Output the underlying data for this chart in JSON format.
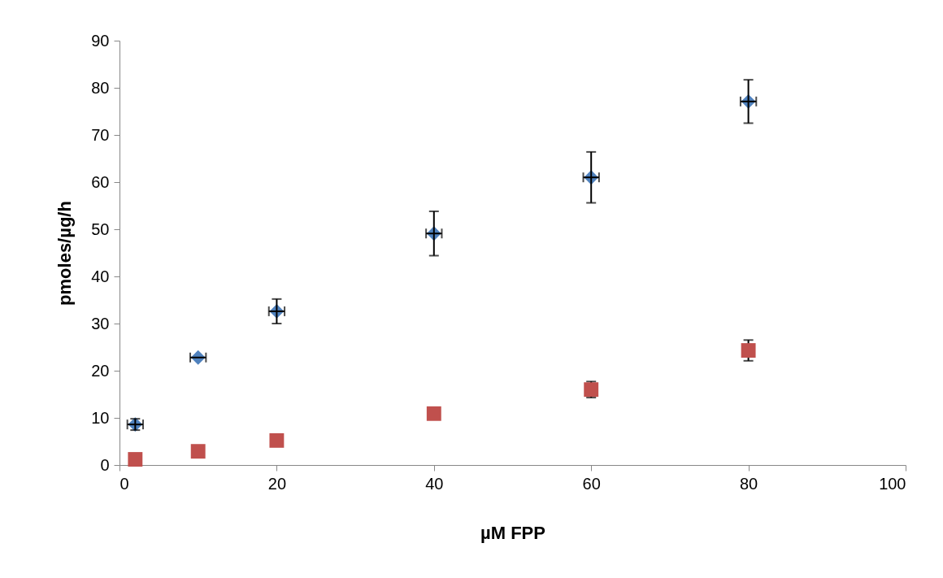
{
  "chart_data": {
    "type": "scatter",
    "xlabel": "µM FPP",
    "ylabel": "pmoles/µg/h",
    "xlim": [
      0,
      100
    ],
    "xticks": [
      0,
      20,
      40,
      60,
      80,
      100
    ],
    "ylim": [
      0,
      90
    ],
    "yticks": [
      0,
      10,
      20,
      30,
      40,
      50,
      60,
      70,
      80,
      90
    ],
    "grid": false,
    "series": [
      {
        "color": "#4f81bd",
        "marker": "diamond",
        "x": [
          2,
          10,
          20,
          40,
          60,
          80
        ],
        "values": [
          8.6,
          22.8,
          32.6,
          49.1,
          61.0,
          77.1
        ],
        "errors": [
          1.2,
          null,
          2.6,
          4.7,
          5.4,
          4.6
        ],
        "xerrors": [
          1,
          1,
          1,
          1,
          1,
          1
        ]
      },
      {
        "color": "#c0504d",
        "marker": "square",
        "x": [
          2,
          10,
          20,
          40,
          60,
          80
        ],
        "values": [
          1.2,
          2.9,
          5.2,
          10.9,
          16.0,
          24.3
        ],
        "errors": [
          null,
          null,
          null,
          null,
          1.7,
          2.2
        ]
      }
    ]
  }
}
